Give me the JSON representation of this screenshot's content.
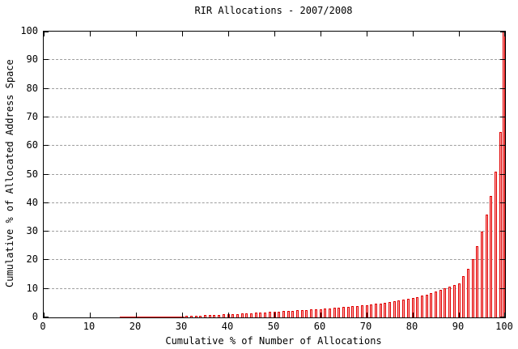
{
  "chart_data": {
    "type": "bar",
    "title": "RIR Allocations - 2007/2008",
    "xlabel": "Cumulative % of Number of Allocations",
    "ylabel": "Cumulative % of Allocated Address Space",
    "xlim": [
      0,
      100
    ],
    "ylim": [
      0,
      100
    ],
    "xticks": [
      0,
      10,
      20,
      30,
      40,
      50,
      60,
      70,
      80,
      90,
      100
    ],
    "yticks": [
      0,
      10,
      20,
      30,
      40,
      50,
      60,
      70,
      80,
      90,
      100
    ],
    "grid": "horizontal dashed gridlines at y=10..90, ticks mirrored on all four borders",
    "legend": "none",
    "bar_border_color": "#e00000",
    "bar_fill_color": "#ffb2b2",
    "bar_line_color": "#ff0000",
    "grid_color": "#9e9e9e",
    "axis_color": "#000000",
    "background_color": "#ffffff",
    "x": [
      1,
      2,
      3,
      4,
      5,
      6,
      7,
      8,
      9,
      10,
      11,
      12,
      13,
      14,
      15,
      16,
      17,
      18,
      19,
      20,
      21,
      22,
      23,
      24,
      25,
      26,
      27,
      28,
      29,
      30,
      31,
      32,
      33,
      34,
      35,
      36,
      37,
      38,
      39,
      40,
      41,
      42,
      43,
      44,
      45,
      46,
      47,
      48,
      49,
      50,
      51,
      52,
      53,
      54,
      55,
      56,
      57,
      58,
      59,
      60,
      61,
      62,
      63,
      64,
      65,
      66,
      67,
      68,
      69,
      70,
      71,
      72,
      73,
      74,
      75,
      76,
      77,
      78,
      79,
      80,
      81,
      82,
      83,
      84,
      85,
      86,
      87,
      88,
      89,
      90,
      91,
      92,
      93,
      94,
      95,
      96,
      97,
      98,
      99,
      100
    ],
    "values": [
      0.01,
      0.02,
      0.02,
      0.03,
      0.03,
      0.04,
      0.05,
      0.05,
      0.06,
      0.07,
      0.08,
      0.09,
      0.1,
      0.11,
      0.12,
      0.13,
      0.15,
      0.16,
      0.18,
      0.2,
      0.22,
      0.24,
      0.26,
      0.28,
      0.31,
      0.34,
      0.37,
      0.4,
      0.43,
      0.47,
      0.55,
      0.6,
      0.65,
      0.7,
      0.76,
      0.82,
      0.88,
      0.95,
      1.02,
      1.1,
      1.18,
      1.26,
      1.34,
      1.42,
      1.5,
      1.58,
      1.67,
      1.76,
      1.85,
      1.95,
      2.05,
      2.15,
      2.25,
      2.35,
      2.45,
      2.55,
      2.65,
      2.75,
      2.85,
      2.95,
      3.05,
      3.2,
      3.3,
      3.45,
      3.6,
      3.7,
      3.85,
      4.0,
      4.15,
      4.3,
      4.5,
      4.7,
      4.9,
      5.1,
      5.3,
      5.6,
      5.9,
      6.2,
      6.5,
      6.8,
      7.2,
      7.6,
      8.0,
      8.5,
      9.0,
      9.6,
      10.2,
      10.9,
      11.4,
      12.0,
      14.5,
      17.0,
      20.5,
      25.0,
      30.0,
      36.0,
      42.5,
      51.0,
      65.0,
      100.0
    ]
  }
}
